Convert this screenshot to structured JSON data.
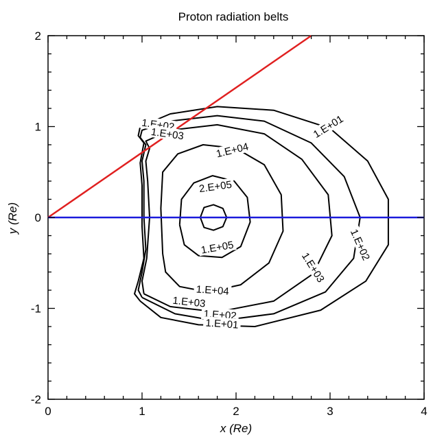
{
  "chart_data": {
    "type": "contour",
    "title": "Proton radiation belts",
    "xlabel": "x (Re)",
    "ylabel": "y (Re)",
    "xlim": [
      0,
      4
    ],
    "ylim": [
      -2,
      2
    ],
    "x_ticks": [
      0,
      1,
      2,
      3,
      4
    ],
    "y_ticks": [
      -2,
      -1,
      0,
      1,
      2
    ],
    "x_tick_labels": [
      "0",
      "1",
      "2",
      "3",
      "4"
    ],
    "y_tick_labels": [
      "-2",
      "-1",
      "0",
      "1",
      "2"
    ],
    "grid": false,
    "lines": [
      {
        "name": "",
        "color": "#e02020",
        "points": [
          [
            0,
            0
          ],
          [
            2.8,
            2.0
          ]
        ]
      },
      {
        "name": "",
        "color": "#1a1adc",
        "points": [
          [
            0,
            0
          ],
          [
            4.0,
            0.0
          ]
        ]
      }
    ],
    "contours": [
      {
        "level": "1.E+01",
        "points": [
          [
            0.98,
            -0.92
          ],
          [
            0.92,
            -0.84
          ],
          [
            0.96,
            -0.7
          ],
          [
            1.02,
            -0.45
          ],
          [
            1.0,
            -0.1
          ],
          [
            1.0,
            0.35
          ],
          [
            0.98,
            0.6
          ],
          [
            1.02,
            0.82
          ],
          [
            0.96,
            0.9
          ],
          [
            0.98,
            1.0
          ],
          [
            1.3,
            1.14
          ],
          [
            1.8,
            1.22
          ],
          [
            2.4,
            1.18
          ],
          [
            3.0,
            0.98
          ],
          [
            3.4,
            0.62
          ],
          [
            3.62,
            0.2
          ],
          [
            3.62,
            -0.3
          ],
          [
            3.38,
            -0.7
          ],
          [
            2.9,
            -1.02
          ],
          [
            2.2,
            -1.2
          ],
          [
            1.6,
            -1.18
          ],
          [
            1.2,
            -1.1
          ],
          [
            0.98,
            -0.92
          ]
        ]
      },
      {
        "level": "1.E+02",
        "points": [
          [
            1.0,
            -0.88
          ],
          [
            0.96,
            -0.8
          ],
          [
            1.0,
            -0.6
          ],
          [
            1.04,
            -0.35
          ],
          [
            1.02,
            0.0
          ],
          [
            1.02,
            0.4
          ],
          [
            1.0,
            0.62
          ],
          [
            1.04,
            0.8
          ],
          [
            0.98,
            0.88
          ],
          [
            1.0,
            0.96
          ],
          [
            1.3,
            1.06
          ],
          [
            1.8,
            1.12
          ],
          [
            2.3,
            1.06
          ],
          [
            2.8,
            0.82
          ],
          [
            3.15,
            0.45
          ],
          [
            3.32,
            0.0
          ],
          [
            3.25,
            -0.45
          ],
          [
            2.95,
            -0.82
          ],
          [
            2.4,
            -1.06
          ],
          [
            1.8,
            -1.14
          ],
          [
            1.35,
            -1.06
          ],
          [
            1.0,
            -0.88
          ]
        ]
      },
      {
        "level": "1.E+03",
        "points": [
          [
            1.02,
            -0.84
          ],
          [
            1.0,
            -0.7
          ],
          [
            1.05,
            -0.45
          ],
          [
            1.08,
            0.0
          ],
          [
            1.06,
            0.4
          ],
          [
            1.04,
            0.62
          ],
          [
            1.08,
            0.76
          ],
          [
            1.04,
            0.84
          ],
          [
            1.3,
            0.96
          ],
          [
            1.8,
            1.02
          ],
          [
            2.3,
            0.92
          ],
          [
            2.7,
            0.64
          ],
          [
            2.98,
            0.25
          ],
          [
            3.02,
            -0.2
          ],
          [
            2.82,
            -0.62
          ],
          [
            2.4,
            -0.92
          ],
          [
            1.8,
            -1.04
          ],
          [
            1.3,
            -0.98
          ],
          [
            1.02,
            -0.84
          ]
        ]
      },
      {
        "level": "1.E+04",
        "points": [
          [
            1.22,
            -0.4
          ],
          [
            1.25,
            -0.6
          ],
          [
            1.4,
            -0.76
          ],
          [
            1.7,
            -0.82
          ],
          [
            2.05,
            -0.74
          ],
          [
            2.35,
            -0.5
          ],
          [
            2.5,
            -0.15
          ],
          [
            2.48,
            0.25
          ],
          [
            2.3,
            0.58
          ],
          [
            2.0,
            0.76
          ],
          [
            1.65,
            0.8
          ],
          [
            1.38,
            0.7
          ],
          [
            1.22,
            0.5
          ],
          [
            1.2,
            0.1
          ],
          [
            1.22,
            -0.4
          ]
        ]
      },
      {
        "level": "1.E+05",
        "points": [
          [
            1.4,
            -0.08
          ],
          [
            1.45,
            -0.3
          ],
          [
            1.6,
            -0.42
          ],
          [
            1.85,
            -0.44
          ],
          [
            2.05,
            -0.32
          ],
          [
            2.15,
            -0.05
          ],
          [
            2.12,
            0.22
          ],
          [
            1.98,
            0.4
          ],
          [
            1.75,
            0.46
          ],
          [
            1.55,
            0.38
          ],
          [
            1.42,
            0.2
          ],
          [
            1.4,
            -0.08
          ]
        ]
      },
      {
        "level": "2.E+05",
        "points": [
          [
            1.62,
            0.0
          ],
          [
            1.66,
            -0.11
          ],
          [
            1.76,
            -0.14
          ],
          [
            1.86,
            -0.1
          ],
          [
            1.9,
            0.0
          ],
          [
            1.86,
            0.1
          ],
          [
            1.76,
            0.14
          ],
          [
            1.66,
            0.11
          ],
          [
            1.62,
            0.0
          ]
        ]
      }
    ],
    "contour_labels": [
      {
        "text": "1.E+02",
        "x": 1.17,
        "y": 1.02,
        "angle": -8
      },
      {
        "text": "1.E+03",
        "x": 1.27,
        "y": 0.92,
        "angle": -8
      },
      {
        "text": "1.E+01",
        "x": 2.98,
        "y": 1.0,
        "angle": 32
      },
      {
        "text": "1.E+04",
        "x": 1.96,
        "y": 0.74,
        "angle": 14
      },
      {
        "text": "2.E+05",
        "x": 1.78,
        "y": 0.34,
        "angle": 8
      },
      {
        "text": "1.E+05",
        "x": 1.8,
        "y": -0.33,
        "angle": 10
      },
      {
        "text": "1.E+03",
        "x": 2.82,
        "y": -0.55,
        "angle": -58
      },
      {
        "text": "1.E+02",
        "x": 3.32,
        "y": -0.3,
        "angle": -66
      },
      {
        "text": "1.E+04",
        "x": 1.75,
        "y": -0.8,
        "angle": -4
      },
      {
        "text": "1.E+03",
        "x": 1.5,
        "y": -0.93,
        "angle": -6
      },
      {
        "text": "1.E+02",
        "x": 1.83,
        "y": -1.07,
        "angle": -4
      },
      {
        "text": "1.E+01",
        "x": 1.85,
        "y": -1.17,
        "angle": -4
      }
    ]
  }
}
